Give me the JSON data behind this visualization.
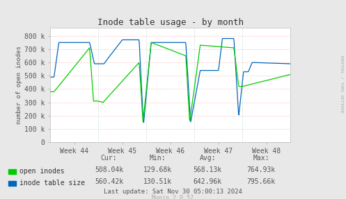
{
  "title": "Inode table usage - by month",
  "ylabel": "number of open inodes",
  "bg_color": "#e8e8e8",
  "plot_bg_color": "#ffffff",
  "grid_color_h": "#ffaaaa",
  "grid_color_v": "#aacccc",
  "line_color_green": "#00cc00",
  "line_color_blue": "#0066bb",
  "yticks": [
    0,
    100000,
    200000,
    300000,
    400000,
    500000,
    600000,
    700000,
    800000
  ],
  "ytick_labels": [
    "0",
    "100 k",
    "200 k",
    "300 k",
    "400 k",
    "500 k",
    "600 k",
    "700 k",
    "800 k"
  ],
  "ylim": [
    0,
    860000
  ],
  "week_labels": [
    "Week 44",
    "Week 45",
    "Week 46",
    "Week 47",
    "Week 48"
  ],
  "legend": [
    {
      "label": "open inodes",
      "color": "#00cc00"
    },
    {
      "label": "inode table size",
      "color": "#0066bb"
    }
  ],
  "stats_header": [
    "Cur:",
    "Min:",
    "Avg:",
    "Max:"
  ],
  "stats_open": [
    "508.04k",
    "129.68k",
    "568.13k",
    "764.93k"
  ],
  "stats_table": [
    "560.42k",
    "130.51k",
    "642.96k",
    "795.66k"
  ],
  "last_update": "Last update: Sat Nov 30 05:00:13 2024",
  "munin_label": "Munin 2.0.57",
  "rrdtool_label": "RRDTOOL / TOBI OETIKER",
  "title_color": "#333333",
  "axis_color": "#555555",
  "text_color": "#333333",
  "stats_color": "#555555"
}
